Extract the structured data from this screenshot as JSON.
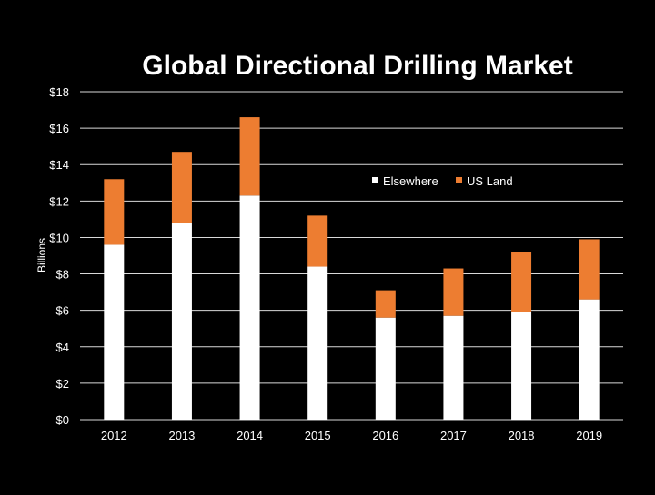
{
  "chart_data": {
    "type": "bar",
    "stacked": true,
    "title": "Global Directional Drilling Market",
    "xlabel": "",
    "ylabel": "Billions",
    "categories": [
      "2012",
      "2013",
      "2014",
      "2015",
      "2016",
      "2017",
      "2018",
      "2019"
    ],
    "series": [
      {
        "name": "Elsewhere",
        "color": "#ffffff",
        "values": [
          9.6,
          10.8,
          12.3,
          8.4,
          5.6,
          5.7,
          5.9,
          6.6
        ]
      },
      {
        "name": "US Land",
        "color": "#ed7d31",
        "values": [
          3.6,
          3.9,
          4.3,
          2.8,
          1.5,
          2.6,
          3.3,
          3.3
        ]
      }
    ],
    "ylim": [
      0,
      18
    ],
    "yticks": [
      0,
      2,
      4,
      6,
      8,
      10,
      12,
      14,
      16,
      18
    ],
    "ytick_labels": [
      "$0",
      "$2",
      "$4",
      "$6",
      "$8",
      "$10",
      "$12",
      "$14",
      "$16",
      "$18"
    ],
    "grid": true,
    "legend_position": "right-middle",
    "background": "#000000",
    "text_color": "#ffffff"
  }
}
